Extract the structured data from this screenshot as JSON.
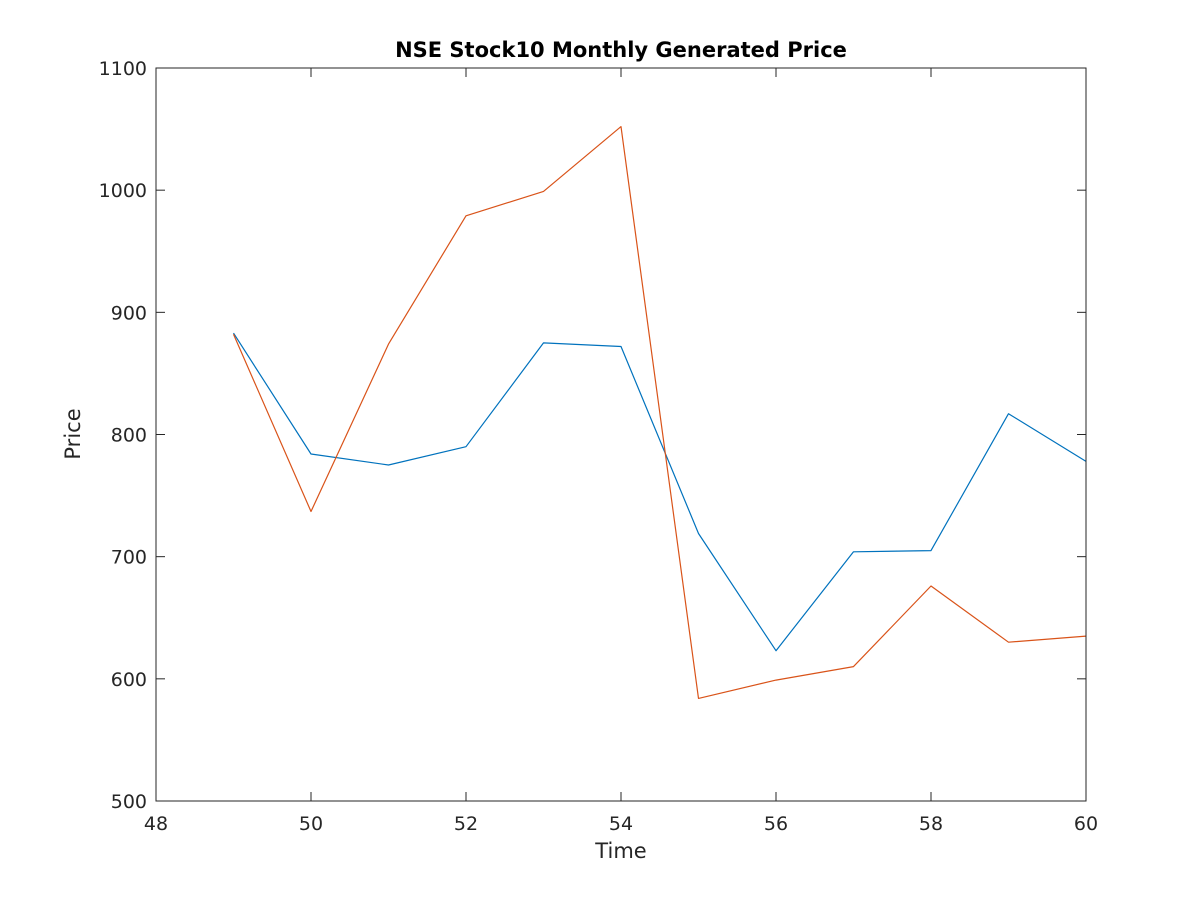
{
  "chart_data": {
    "type": "line",
    "title": "NSE Stock10 Monthly Generated Price",
    "xlabel": "Time",
    "ylabel": "Price",
    "xlim": [
      48,
      60
    ],
    "ylim": [
      500,
      1100
    ],
    "x_ticks": [
      "48",
      "50",
      "52",
      "54",
      "56",
      "58",
      "60"
    ],
    "y_ticks": [
      "500",
      "600",
      "700",
      "800",
      "900",
      "1000",
      "1100"
    ],
    "grid": false,
    "legend": "none",
    "x": [
      49,
      50,
      51,
      52,
      53,
      54,
      55,
      56,
      57,
      58,
      59,
      60
    ],
    "series": [
      {
        "color": "#0072BD",
        "values": [
          883,
          784,
          775,
          790,
          875,
          872,
          719,
          623,
          704,
          705,
          817,
          778
        ]
      },
      {
        "color": "#D95319",
        "values": [
          882,
          737,
          874,
          979,
          999,
          1052,
          584,
          599,
          610,
          676,
          630,
          635
        ]
      }
    ]
  }
}
